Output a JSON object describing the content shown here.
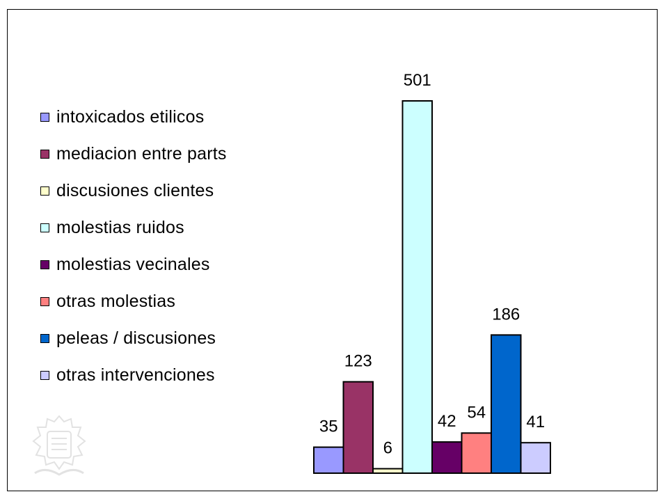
{
  "chart_data": {
    "type": "bar",
    "title": "",
    "xlabel": "",
    "ylabel": "",
    "ylim": [
      0,
      501
    ],
    "grid": false,
    "legend_position": "left",
    "categories": [
      "intoxicados etilicos",
      "mediacion entre parts",
      "discusiones clientes",
      "molestias ruidos",
      "molestias vecinales",
      "otras molestias",
      "peleas / discusiones",
      "otras intervenciones"
    ],
    "values": [
      35,
      123,
      6,
      501,
      42,
      54,
      186,
      41
    ],
    "value_labels": [
      "35",
      "123",
      "6",
      "501",
      "42",
      "54",
      "186",
      "41"
    ],
    "colors": [
      "#9999FF",
      "#993366",
      "#FFFFCC",
      "#CCFFFF",
      "#660066",
      "#FF8080",
      "#0066CC",
      "#CCCCFF"
    ]
  },
  "legend": [
    {
      "label": "intoxicados etilicos",
      "color": "#9999FF"
    },
    {
      "label": "mediacion entre parts",
      "color": "#993366"
    },
    {
      "label": "discusiones clientes",
      "color": "#FFFFCC"
    },
    {
      "label": "molestias ruidos",
      "color": "#CCFFFF"
    },
    {
      "label": "molestias vecinales",
      "color": "#660066"
    },
    {
      "label": "otras molestias",
      "color": "#FF8080"
    },
    {
      "label": "peleas / discusiones",
      "color": "#0066CC"
    },
    {
      "label": "otras intervenciones",
      "color": "#CCCCFF"
    }
  ],
  "watermark": {
    "icon": "municipal-crest-icon"
  }
}
